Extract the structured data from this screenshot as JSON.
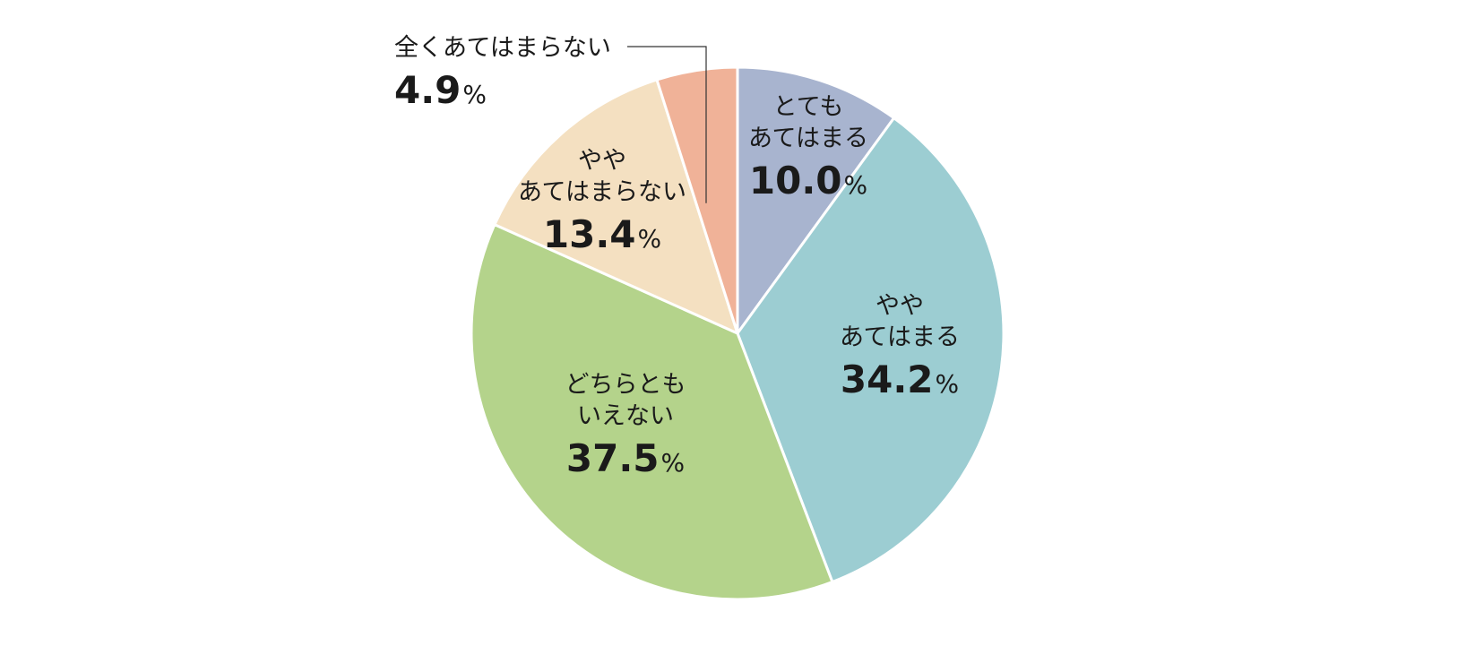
{
  "chart_data": {
    "type": "pie",
    "start": "top",
    "direction": "clockwise",
    "slices": [
      {
        "lines": [
          "とても",
          "あてはまる"
        ],
        "value": 10.0,
        "value_text": "10.0",
        "unit": "%",
        "color": "#a8b4cf"
      },
      {
        "lines": [
          "やや",
          "あてはまる"
        ],
        "value": 34.2,
        "value_text": "34.2",
        "unit": "%",
        "color": "#9ccdd2"
      },
      {
        "lines": [
          "どちらとも",
          "いえない"
        ],
        "value": 37.5,
        "value_text": "37.5",
        "unit": "%",
        "color": "#b4d38b"
      },
      {
        "lines": [
          "やや",
          "あてはまらない"
        ],
        "value": 13.4,
        "value_text": "13.4",
        "unit": "%",
        "color": "#f4e0c1"
      },
      {
        "lines": [
          "全くあてはまらない"
        ],
        "value": 4.9,
        "value_text": "4.9",
        "unit": "%",
        "color": "#f0b298",
        "callout": true
      }
    ]
  }
}
